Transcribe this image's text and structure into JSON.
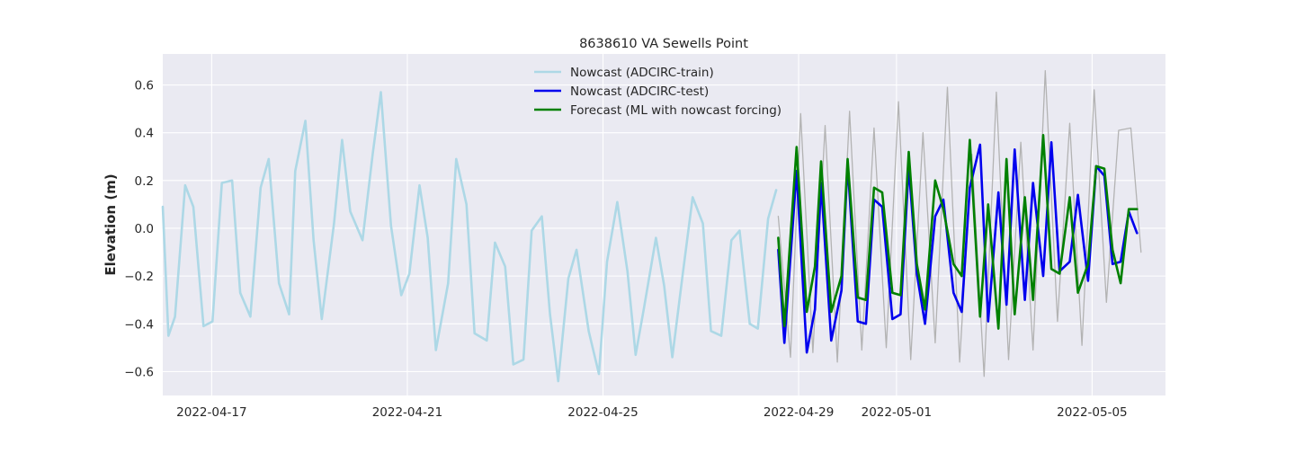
{
  "chart_data": {
    "type": "line",
    "title": "8638610 VA Sewells Point",
    "ylabel": "Elevation (m)",
    "xlabel": "",
    "x_axis": "date",
    "xlim": [
      "2022-04-16T00:00",
      "2022-05-06T12:00"
    ],
    "ylim": [
      -0.7,
      0.73
    ],
    "grid": true,
    "legend_position": "top-center",
    "x_ticks": [
      "2022-04-17",
      "2022-04-21",
      "2022-04-25",
      "2022-04-29",
      "2022-05-01",
      "2022-05-05"
    ],
    "y_ticks": [
      -0.6,
      -0.4,
      -0.2,
      0.0,
      0.2,
      0.4,
      0.6
    ],
    "y_tick_labels": [
      "−0.6",
      "−0.4",
      "−0.2",
      "0.0",
      "0.2",
      "0.4",
      "0.6"
    ],
    "series": [
      {
        "name": "",
        "color": "#b3b3b3",
        "width": 1.3,
        "in_legend": false,
        "x": [
          "2022-04-28T14:00",
          "2022-04-28T20:00",
          "2022-04-29T01:00",
          "2022-04-29T07:00",
          "2022-04-29T13:00",
          "2022-04-29T19:00",
          "2022-04-30T01:00",
          "2022-04-30T07:00",
          "2022-04-30T13:00",
          "2022-04-30T19:00",
          "2022-05-01T01:00",
          "2022-05-01T07:00",
          "2022-05-01T13:00",
          "2022-05-01T19:00",
          "2022-05-02T01:00",
          "2022-05-02T07:00",
          "2022-05-02T13:00",
          "2022-05-02T19:00",
          "2022-05-03T01:00",
          "2022-05-03T07:00",
          "2022-05-03T13:00",
          "2022-05-03T19:00",
          "2022-05-04T01:00",
          "2022-05-04T07:00",
          "2022-05-04T13:00",
          "2022-05-04T19:00",
          "2022-05-05T01:00",
          "2022-05-05T07:00",
          "2022-05-05T13:00",
          "2022-05-05T19:00",
          "2022-05-06T00:00"
        ],
        "y": [
          0.05,
          -0.54,
          0.48,
          -0.52,
          0.43,
          -0.56,
          0.49,
          -0.51,
          0.42,
          -0.5,
          0.53,
          -0.55,
          0.4,
          -0.48,
          0.59,
          -0.56,
          0.31,
          -0.62,
          0.57,
          -0.55,
          0.36,
          -0.51,
          0.66,
          -0.39,
          0.44,
          -0.49,
          0.58,
          -0.31,
          0.41,
          0.42,
          -0.1
        ]
      },
      {
        "name": "Nowcast (ADCIRC-train)",
        "color": "#add8e6",
        "width": 2.6,
        "in_legend": true,
        "x": [
          "2022-04-16T00:00",
          "2022-04-16T02:48",
          "2022-04-16T06:00",
          "2022-04-16T11:00",
          "2022-04-16T15:00",
          "2022-04-16T20:00",
          "2022-04-17T00:24",
          "2022-04-17T05:00",
          "2022-04-17T10:00",
          "2022-04-17T14:00",
          "2022-04-17T19:00",
          "2022-04-18T00:00",
          "2022-04-18T04:00",
          "2022-04-18T09:00",
          "2022-04-18T14:00",
          "2022-04-18T17:00",
          "2022-04-18T22:00",
          "2022-04-19T02:00",
          "2022-04-19T06:00",
          "2022-04-19T12:00",
          "2022-04-19T16:00",
          "2022-04-19T20:00",
          "2022-04-20T02:00",
          "2022-04-20T07:00",
          "2022-04-20T11:00",
          "2022-04-20T16:00",
          "2022-04-20T21:00",
          "2022-04-21T01:00",
          "2022-04-21T06:00",
          "2022-04-21T10:00",
          "2022-04-21T14:00",
          "2022-04-21T20:00",
          "2022-04-22T00:00",
          "2022-04-22T05:00",
          "2022-04-22T09:00",
          "2022-04-22T15:00",
          "2022-04-22T19:00",
          "2022-04-23T00:00",
          "2022-04-23T04:00",
          "2022-04-23T09:00",
          "2022-04-23T13:00",
          "2022-04-23T18:00",
          "2022-04-23T22:00",
          "2022-04-24T02:00",
          "2022-04-24T07:00",
          "2022-04-24T11:00",
          "2022-04-24T17:00",
          "2022-04-24T22:00",
          "2022-04-25T02:00",
          "2022-04-25T07:00",
          "2022-04-25T12:00",
          "2022-04-25T16:00",
          "2022-04-25T20:00",
          "2022-04-26T02:00",
          "2022-04-26T06:00",
          "2022-04-26T10:00",
          "2022-04-26T15:00",
          "2022-04-26T20:00",
          "2022-04-27T01:00",
          "2022-04-27T05:00",
          "2022-04-27T10:00",
          "2022-04-27T15:00",
          "2022-04-27T19:00",
          "2022-04-28T00:00",
          "2022-04-28T04:00",
          "2022-04-28T09:00",
          "2022-04-28T13:00"
        ],
        "y": [
          0.09,
          -0.45,
          -0.37,
          0.18,
          0.09,
          -0.41,
          -0.39,
          0.19,
          0.2,
          -0.27,
          -0.37,
          0.17,
          0.29,
          -0.23,
          -0.36,
          0.24,
          0.45,
          -0.05,
          -0.38,
          0.02,
          0.37,
          0.07,
          -0.05,
          0.31,
          0.57,
          0.01,
          -0.28,
          -0.19,
          0.18,
          -0.04,
          -0.51,
          -0.23,
          0.29,
          0.1,
          -0.44,
          -0.47,
          -0.06,
          -0.16,
          -0.57,
          -0.55,
          -0.01,
          0.05,
          -0.36,
          -0.64,
          -0.21,
          -0.09,
          -0.43,
          -0.61,
          -0.14,
          0.11,
          -0.18,
          -0.53,
          -0.34,
          -0.04,
          -0.24,
          -0.54,
          -0.2,
          0.13,
          0.02,
          -0.43,
          -0.45,
          -0.05,
          -0.01,
          -0.4,
          -0.42,
          0.04,
          0.16
        ]
      },
      {
        "name": "Nowcast (ADCIRC-test)",
        "color": "#0000ee",
        "width": 2.6,
        "in_legend": true,
        "x": [
          "2022-04-28T14:00",
          "2022-04-28T17:00",
          "2022-04-28T23:00",
          "2022-04-29T04:00",
          "2022-04-29T08:00",
          "2022-04-29T11:00",
          "2022-04-29T16:00",
          "2022-04-29T21:00",
          "2022-04-30T00:00",
          "2022-04-30T05:00",
          "2022-04-30T09:00",
          "2022-04-30T13:00",
          "2022-04-30T17:00",
          "2022-04-30T22:00",
          "2022-05-01T02:00",
          "2022-05-01T06:00",
          "2022-05-01T10:00",
          "2022-05-01T14:00",
          "2022-05-01T19:00",
          "2022-05-01T23:00",
          "2022-05-02T04:00",
          "2022-05-02T08:00",
          "2022-05-02T12:00",
          "2022-05-02T17:00",
          "2022-05-02T21:00",
          "2022-05-03T02:00",
          "2022-05-03T06:00",
          "2022-05-03T10:00",
          "2022-05-03T15:00",
          "2022-05-03T19:00",
          "2022-05-04T00:00",
          "2022-05-04T04:00",
          "2022-05-04T08:00",
          "2022-05-04T13:00",
          "2022-05-04T17:00",
          "2022-05-04T22:00",
          "2022-05-05T02:00",
          "2022-05-05T06:00",
          "2022-05-05T10:00",
          "2022-05-05T14:00",
          "2022-05-05T18:00",
          "2022-05-05T22:00"
        ],
        "y": [
          -0.09,
          -0.48,
          0.24,
          -0.52,
          -0.34,
          0.19,
          -0.47,
          -0.26,
          0.27,
          -0.39,
          -0.4,
          0.12,
          0.09,
          -0.38,
          -0.36,
          0.26,
          -0.19,
          -0.4,
          0.05,
          0.12,
          -0.27,
          -0.35,
          0.17,
          0.35,
          -0.39,
          0.15,
          -0.32,
          0.33,
          -0.3,
          0.19,
          -0.2,
          0.36,
          -0.18,
          -0.14,
          0.14,
          -0.22,
          0.26,
          0.22,
          -0.15,
          -0.14,
          0.07,
          -0.02
        ]
      },
      {
        "name": "Forecast (ML with nowcast forcing)",
        "color": "#008000",
        "width": 2.6,
        "in_legend": true,
        "x": [
          "2022-04-28T14:00",
          "2022-04-28T17:00",
          "2022-04-28T23:00",
          "2022-04-29T04:00",
          "2022-04-29T08:00",
          "2022-04-29T11:00",
          "2022-04-29T16:00",
          "2022-04-29T21:00",
          "2022-04-30T00:00",
          "2022-04-30T05:00",
          "2022-04-30T09:00",
          "2022-04-30T13:00",
          "2022-04-30T17:00",
          "2022-04-30T22:00",
          "2022-05-01T02:00",
          "2022-05-01T06:00",
          "2022-05-01T10:00",
          "2022-05-01T14:00",
          "2022-05-01T19:00",
          "2022-05-01T23:00",
          "2022-05-02T04:00",
          "2022-05-02T08:00",
          "2022-05-02T12:00",
          "2022-05-02T17:00",
          "2022-05-02T21:00",
          "2022-05-03T02:00",
          "2022-05-03T06:00",
          "2022-05-03T10:00",
          "2022-05-03T15:00",
          "2022-05-03T19:00",
          "2022-05-04T00:00",
          "2022-05-04T04:00",
          "2022-05-04T08:00",
          "2022-05-04T13:00",
          "2022-05-04T17:00",
          "2022-05-04T22:00",
          "2022-05-05T02:00",
          "2022-05-05T06:00",
          "2022-05-05T10:00",
          "2022-05-05T14:00",
          "2022-05-05T18:00",
          "2022-05-05T22:00"
        ],
        "y": [
          -0.04,
          -0.41,
          0.34,
          -0.35,
          -0.16,
          0.28,
          -0.35,
          -0.2,
          0.29,
          -0.29,
          -0.3,
          0.17,
          0.15,
          -0.27,
          -0.28,
          0.32,
          -0.15,
          -0.34,
          0.2,
          0.08,
          -0.15,
          -0.2,
          0.37,
          -0.37,
          0.1,
          -0.42,
          0.29,
          -0.36,
          0.13,
          -0.3,
          0.39,
          -0.17,
          -0.19,
          0.13,
          -0.27,
          -0.15,
          0.26,
          0.25,
          -0.09,
          -0.23,
          0.08,
          0.08
        ]
      }
    ]
  }
}
